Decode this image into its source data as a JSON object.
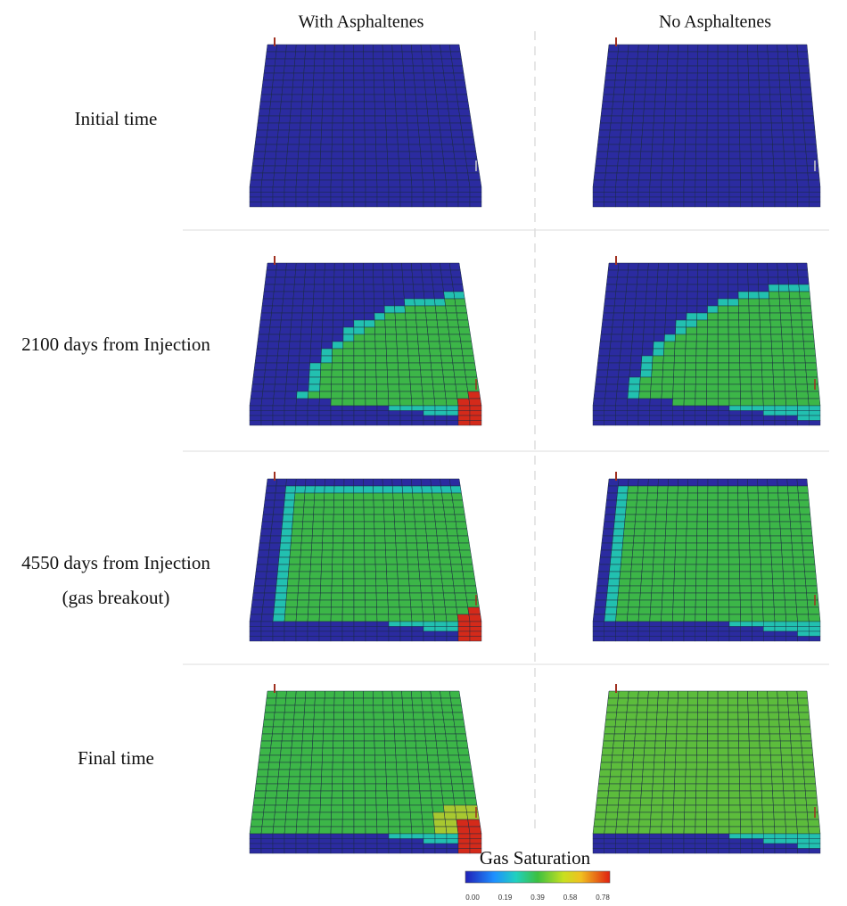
{
  "columns": [
    "With Asphaltenes",
    "No Asphaltenes"
  ],
  "rows": [
    [
      "Initial time"
    ],
    [
      "2100 days from Injection"
    ],
    [
      "4550 days from Injection",
      "(gas breakout)"
    ],
    [
      "Final time"
    ]
  ],
  "colorbar": {
    "title": "Gas Saturation",
    "ticks": [
      "0.00",
      "0.19",
      "0.39",
      "0.58",
      "0.78"
    ]
  }
}
